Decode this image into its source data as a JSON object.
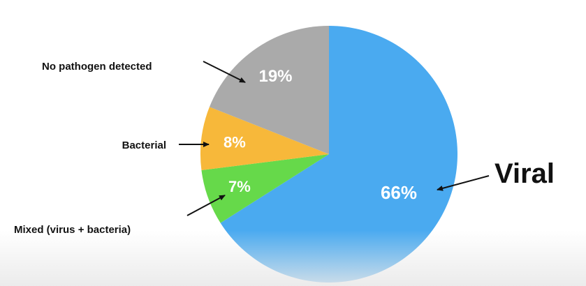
{
  "chart_data": {
    "type": "pie",
    "slices": [
      {
        "label": "Viral",
        "value": 66,
        "value_text": "66%",
        "color": "#4aaaf0"
      },
      {
        "label": "Mixed (virus + bacteria)",
        "value": 7,
        "value_text": "7%",
        "color": "#66d94a"
      },
      {
        "label": "Bacterial",
        "value": 8,
        "value_text": "8%",
        "color": "#f7b83a"
      },
      {
        "label": "No pathogen detected",
        "value": 19,
        "value_text": "19%",
        "color": "#aaaaaa"
      }
    ],
    "start": "12 o'clock",
    "direction": "clockwise",
    "legend": "none (labels with arrows)"
  }
}
